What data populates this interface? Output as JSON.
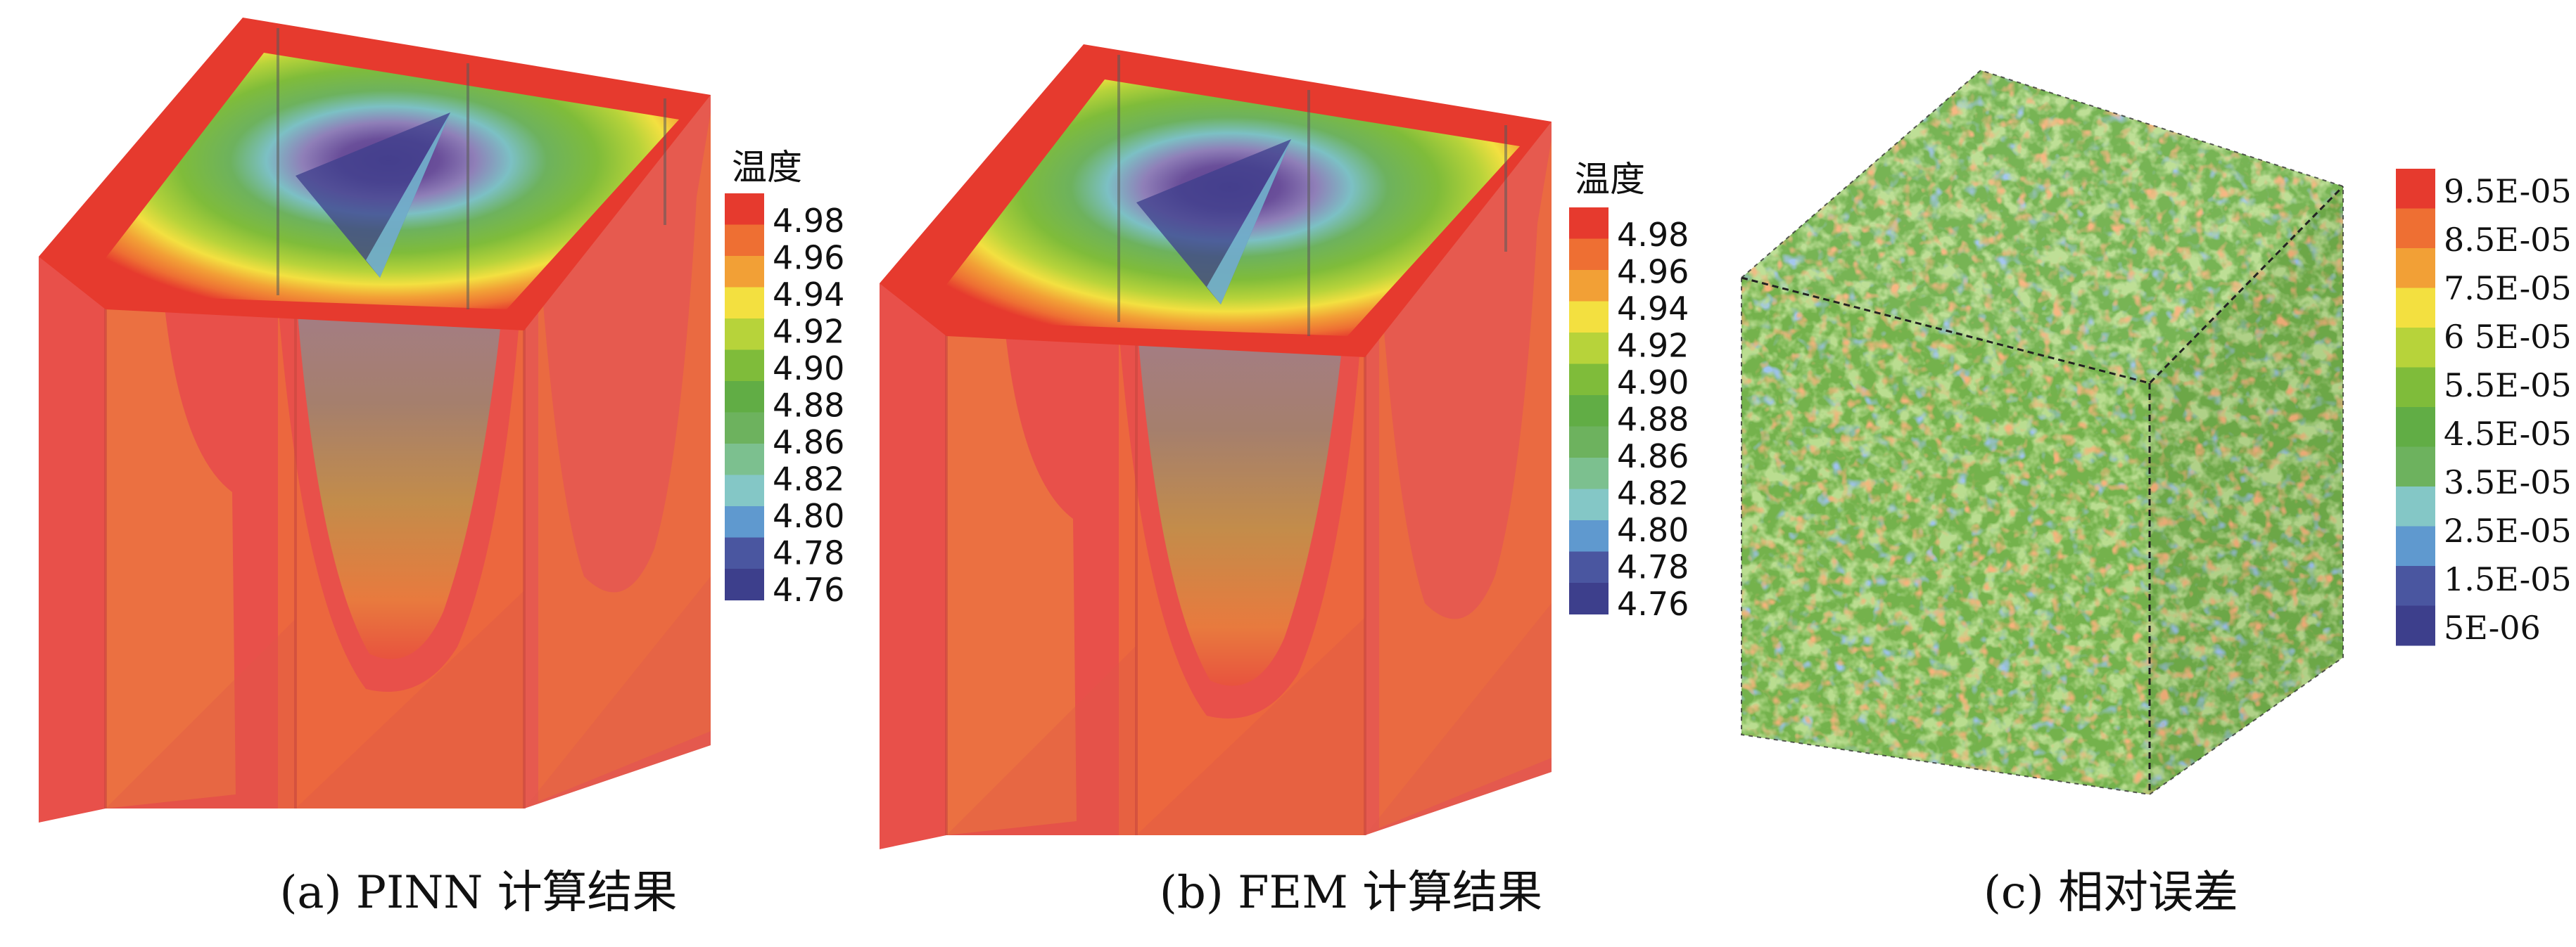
{
  "panels": [
    {
      "id": "a",
      "caption": "(a) PINN 计算结果",
      "legend_title": "温度",
      "legend_colors": [
        "#e63a2e",
        "#ee6f33",
        "#f2a036",
        "#f3e040",
        "#b7d33a",
        "#7fbc3a",
        "#61ad45",
        "#6db25e",
        "#7cc08f",
        "#84c7c6",
        "#5f99cf",
        "#4a56a0",
        "#3d3f8c"
      ],
      "legend_labels": [
        "4.98",
        "4.96",
        "4.94",
        "4.92",
        "4.90",
        "4.88",
        "4.86",
        "4.82",
        "4.80",
        "4.78",
        "4.76"
      ]
    },
    {
      "id": "b",
      "caption": "(b) FEM 计算结果",
      "legend_title": "温度",
      "legend_colors": [
        "#e63a2e",
        "#ee6f33",
        "#f2a036",
        "#f3e040",
        "#b7d33a",
        "#7fbc3a",
        "#61ad45",
        "#6db25e",
        "#7cc08f",
        "#84c7c6",
        "#5f99cf",
        "#4a56a0",
        "#3d3f8c"
      ],
      "legend_labels": [
        "4.98",
        "4.96",
        "4.94",
        "4.92",
        "4.90",
        "4.88",
        "4.86",
        "4.82",
        "4.80",
        "4.78",
        "4.76"
      ]
    },
    {
      "id": "c",
      "caption": "(c) 相对误差",
      "legend_title": "",
      "legend_colors": [
        "#e63a2e",
        "#ee6f33",
        "#f2a036",
        "#f3e040",
        "#b7d33a",
        "#7fbc3a",
        "#61ad45",
        "#6db25e",
        "#84c7c6",
        "#5f99cf",
        "#4a56a0",
        "#3d3f8c"
      ],
      "legend_labels": [
        "9.5E-05",
        "8.5E-05",
        "7.5E-05",
        "6 5E-05",
        "5.5E-05",
        "4.5E-05",
        "3.5E-05",
        "2.5E-05",
        "1.5E-05",
        "5E-06"
      ]
    }
  ]
}
